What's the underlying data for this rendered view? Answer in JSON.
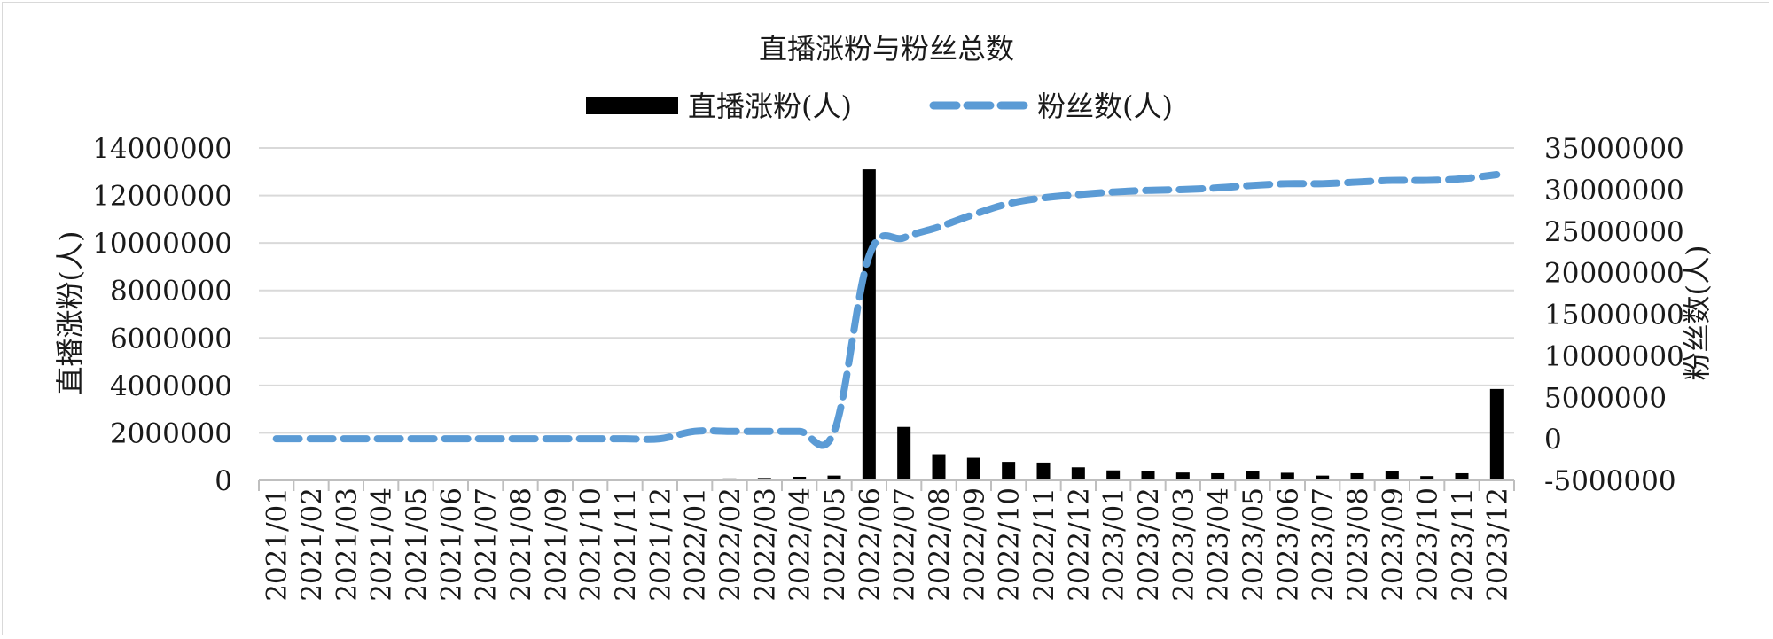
{
  "chart_data": {
    "type": "bar+line",
    "title": "直播涨粉与粉丝总数",
    "legend": [
      "直播涨粉(人)",
      "粉丝数(人)"
    ],
    "legend_position": "top",
    "ylabel_left": "直播涨粉(人)",
    "ylabel_right": "粉丝数(人)",
    "ylim_left": [
      0,
      14000000
    ],
    "ylim_right": [
      -5000000,
      35000000
    ],
    "yticks_left": [
      "0",
      "2000000",
      "4000000",
      "6000000",
      "8000000",
      "10000000",
      "12000000",
      "14000000"
    ],
    "yticks_right": [
      "-5000000",
      "0",
      "5000000",
      "10000000",
      "15000000",
      "20000000",
      "25000000",
      "30000000",
      "35000000"
    ],
    "grid": true,
    "categories": [
      "2021/01",
      "2021/02",
      "2021/03",
      "2021/04",
      "2021/05",
      "2021/06",
      "2021/07",
      "2021/08",
      "2021/09",
      "2021/10",
      "2021/11",
      "2021/12",
      "2022/01",
      "2022/02",
      "2022/03",
      "2022/04",
      "2022/05",
      "2022/06",
      "2022/07",
      "2022/08",
      "2022/09",
      "2022/10",
      "2022/11",
      "2022/12",
      "2023/01",
      "2023/02",
      "2023/03",
      "2023/04",
      "2023/05",
      "2023/06",
      "2023/07",
      "2023/08",
      "2023/09",
      "2023/10",
      "2023/11",
      "2023/12"
    ],
    "series": [
      {
        "name": "直播涨粉(人)",
        "type": "bar",
        "axis": "left",
        "color": "#000000",
        "values": [
          0,
          0,
          0,
          0,
          0,
          0,
          0,
          0,
          0,
          0,
          0,
          20000,
          40000,
          80000,
          100000,
          150000,
          200000,
          13100000,
          2250000,
          1100000,
          950000,
          780000,
          750000,
          550000,
          420000,
          400000,
          330000,
          300000,
          380000,
          320000,
          200000,
          300000,
          380000,
          180000,
          300000,
          3850000
        ]
      },
      {
        "name": "粉丝数(人)",
        "type": "line",
        "axis": "right",
        "color": "#5b9bd5",
        "style": "dashed",
        "values": [
          0,
          0,
          0,
          0,
          0,
          0,
          0,
          0,
          0,
          0,
          0,
          0,
          900000,
          900000,
          900000,
          900000,
          900000,
          22000000,
          24200000,
          25500000,
          27000000,
          28300000,
          29000000,
          29400000,
          29700000,
          29900000,
          30000000,
          30200000,
          30500000,
          30700000,
          30700000,
          30900000,
          31100000,
          31100000,
          31300000,
          31800000
        ]
      }
    ]
  }
}
